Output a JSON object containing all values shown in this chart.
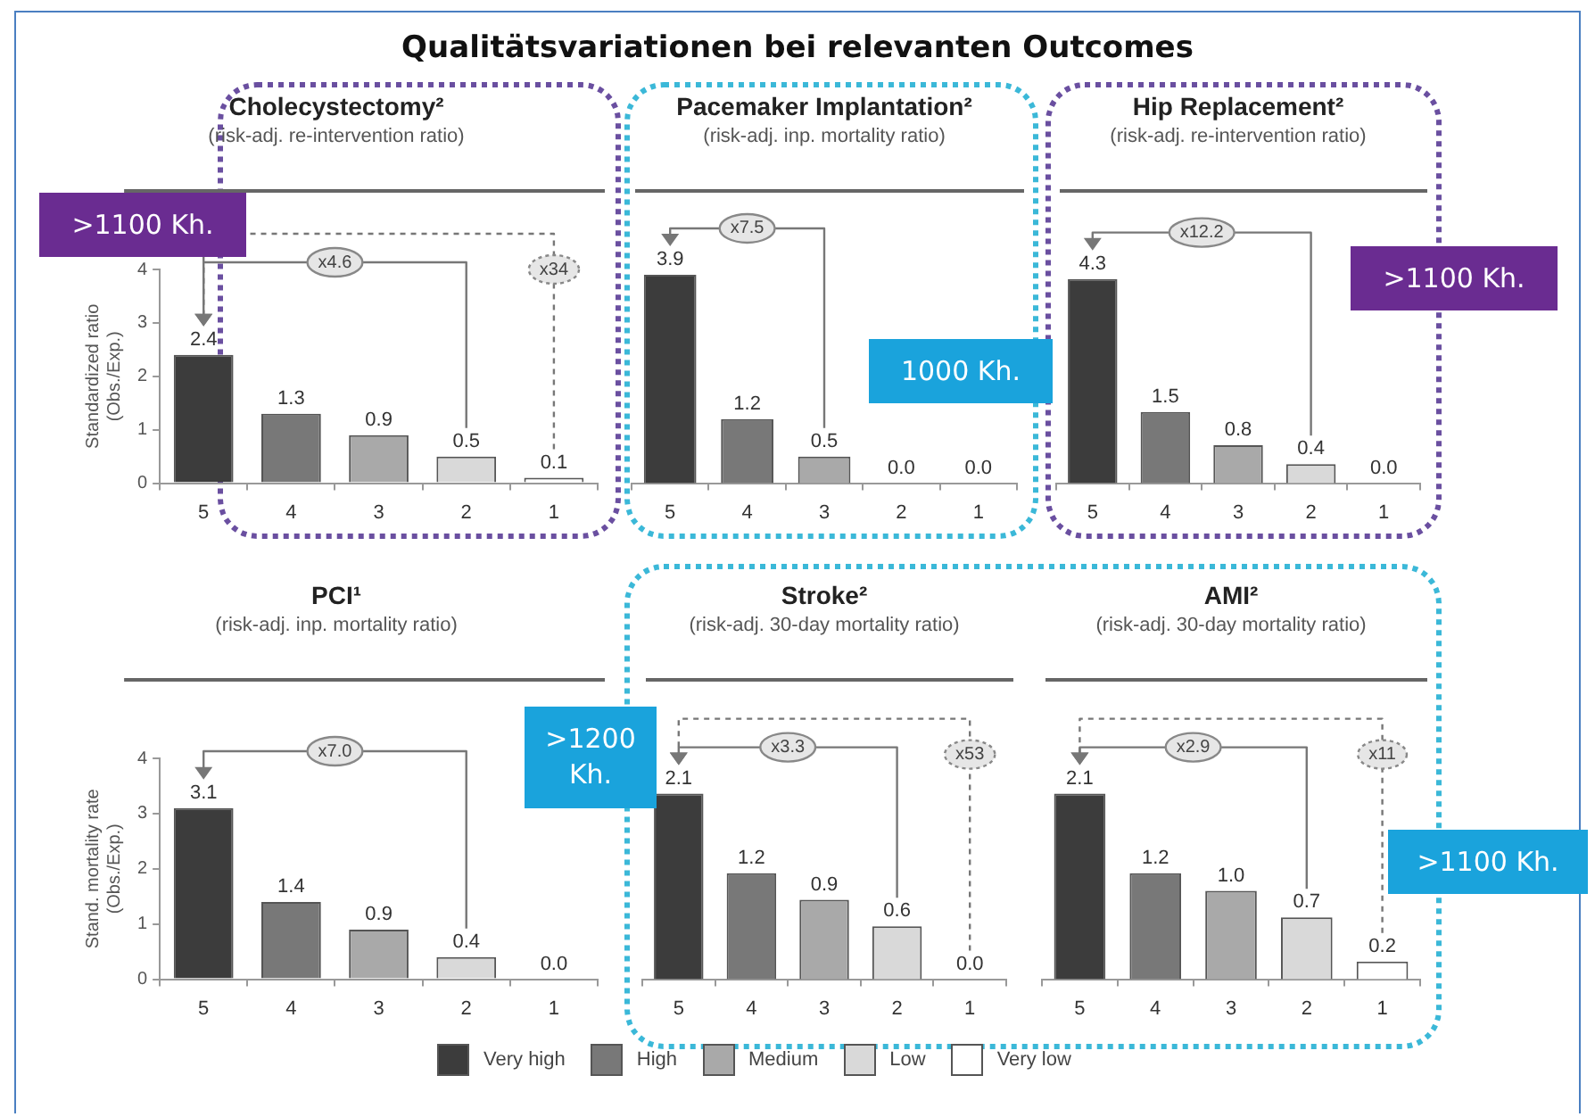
{
  "chart_data": [
    {
      "type": "other",
      "title": "Qualitätsvariationen bei relevanten Outcomes"
    },
    {
      "type": "bar",
      "title": "Cholecystectomy²",
      "subtitle": "(risk-adj. re-intervention ratio)",
      "ylabel": "Standardized ratio\n(Obs./Exp.)",
      "categories": [
        "5",
        "4",
        "3",
        "2",
        "1"
      ],
      "ylim": [
        0,
        4
      ],
      "yticks": [
        0,
        1,
        2,
        3,
        4
      ],
      "annotations": [
        ">1100 Kh.",
        "x4.6",
        "x34"
      ],
      "series": [
        {
          "color": "#3c3c3c",
          "values": [
            2.4,
            null,
            null,
            null,
            null
          ],
          "value_labels": [
            "2.4",
            null,
            null,
            null,
            null
          ]
        },
        {
          "color": "#787878",
          "values": [
            null,
            1.3,
            null,
            null,
            null
          ],
          "value_labels": [
            null,
            "1.3",
            null,
            null,
            null
          ]
        },
        {
          "color": "#a9a9a9",
          "values": [
            null,
            null,
            0.9,
            null,
            null
          ],
          "value_labels": [
            null,
            null,
            "0.9",
            null,
            null
          ]
        },
        {
          "color": "#d9d9d9",
          "values": [
            null,
            null,
            null,
            0.5,
            null
          ],
          "value_labels": [
            null,
            null,
            null,
            "0.5",
            null
          ]
        },
        {
          "color": "#ffffff",
          "values": [
            null,
            null,
            null,
            null,
            0.1
          ],
          "value_labels": [
            null,
            null,
            null,
            null,
            "0.1"
          ]
        }
      ]
    },
    {
      "type": "bar",
      "title": "Pacemaker Implantation²",
      "subtitle": "(risk-adj. inp. mortality ratio)",
      "categories": [
        "5",
        "4",
        "3",
        "2",
        "1"
      ],
      "tick_labels": "x",
      "annotations": [
        "1000 Kh.",
        "x7.5"
      ],
      "series": [
        {
          "color": "#3c3c3c",
          "values": [
            3.9,
            null,
            null,
            null,
            null
          ],
          "value_labels": [
            "3.9",
            null,
            null,
            null,
            null
          ]
        },
        {
          "color": "#787878",
          "values": [
            null,
            1.2,
            null,
            null,
            null
          ],
          "value_labels": [
            null,
            "1.2",
            null,
            null,
            null
          ]
        },
        {
          "color": "#a9a9a9",
          "values": [
            null,
            null,
            0.5,
            null,
            null
          ],
          "value_labels": [
            null,
            null,
            "0.5",
            null,
            null
          ]
        },
        {
          "color": "#d9d9d9",
          "values": [
            null,
            null,
            null,
            0,
            null
          ],
          "value_labels": [
            null,
            null,
            null,
            "0.0",
            null
          ]
        },
        {
          "color": "#ffffff",
          "values": [
            null,
            null,
            null,
            null,
            0
          ],
          "value_labels": [
            null,
            null,
            null,
            null,
            "0.0"
          ]
        }
      ]
    },
    {
      "type": "bar",
      "title": "Hip Replacement²",
      "subtitle": "(risk-adj. re-intervention ratio)",
      "categories": [
        "5",
        "4",
        "3",
        "2",
        "1"
      ],
      "tick_labels": "x",
      "annotations": [
        ">1100 Kh.",
        "x12.2"
      ],
      "series": [
        {
          "color": "#3c3c3c",
          "values": [
            4.3,
            null,
            null,
            null,
            null
          ],
          "value_labels": [
            "4.3",
            null,
            null,
            null,
            null
          ]
        },
        {
          "color": "#787878",
          "values": [
            null,
            1.5,
            null,
            null,
            null
          ],
          "value_labels": [
            null,
            "1.5",
            null,
            null,
            null
          ]
        },
        {
          "color": "#a9a9a9",
          "values": [
            null,
            null,
            0.8,
            null,
            null
          ],
          "value_labels": [
            null,
            null,
            "0.8",
            null,
            null
          ]
        },
        {
          "color": "#d9d9d9",
          "values": [
            null,
            null,
            null,
            0.4,
            null
          ],
          "value_labels": [
            null,
            null,
            null,
            "0.4",
            null
          ]
        },
        {
          "color": "#ffffff",
          "values": [
            null,
            null,
            null,
            null,
            0
          ],
          "value_labels": [
            null,
            null,
            null,
            null,
            "0.0"
          ]
        }
      ]
    },
    {
      "type": "bar",
      "title": "PCI¹",
      "subtitle": "(risk-adj. inp. mortality ratio)",
      "ylabel": "Stand. mortality rate\n(Obs./Exp.)",
      "categories": [
        "5",
        "4",
        "3",
        "2",
        "1"
      ],
      "ylim": [
        0,
        4
      ],
      "yticks": [
        0,
        1,
        2,
        3,
        4
      ],
      "annotations": [
        "x7.0"
      ],
      "series": [
        {
          "color": "#3c3c3c",
          "values": [
            3.1,
            null,
            null,
            null,
            null
          ],
          "value_labels": [
            "3.1",
            null,
            null,
            null,
            null
          ]
        },
        {
          "color": "#787878",
          "values": [
            null,
            1.4,
            null,
            null,
            null
          ],
          "value_labels": [
            null,
            "1.4",
            null,
            null,
            null
          ]
        },
        {
          "color": "#a9a9a9",
          "values": [
            null,
            null,
            0.9,
            null,
            null
          ],
          "value_labels": [
            null,
            null,
            "0.9",
            null,
            null
          ]
        },
        {
          "color": "#d9d9d9",
          "values": [
            null,
            null,
            null,
            0.4,
            null
          ],
          "value_labels": [
            null,
            null,
            null,
            "0.4",
            null
          ]
        },
        {
          "color": "#ffffff",
          "values": [
            null,
            null,
            null,
            null,
            0
          ],
          "value_labels": [
            null,
            null,
            null,
            null,
            "0.0"
          ]
        }
      ]
    },
    {
      "type": "bar",
      "title": "Stroke²",
      "subtitle": "(risk-adj. 30-day mortality ratio)",
      "categories": [
        "5",
        "4",
        "3",
        "2",
        "1"
      ],
      "tick_labels": "x",
      "legend": "bottom",
      "annotations": [
        ">1200 Kh.",
        "x3.3",
        "x53"
      ],
      "series": [
        {
          "name": "Very high",
          "color": "#3c3c3c",
          "values": [
            2.1,
            null,
            null,
            null,
            null
          ],
          "value_labels": [
            "2.1",
            null,
            null,
            null,
            null
          ]
        },
        {
          "name": "High",
          "color": "#787878",
          "values": [
            null,
            1.2,
            null,
            null,
            null
          ],
          "value_labels": [
            null,
            "1.2",
            null,
            null,
            null
          ]
        },
        {
          "name": "Medium",
          "color": "#a9a9a9",
          "values": [
            null,
            null,
            0.9,
            null,
            null
          ],
          "value_labels": [
            null,
            null,
            "0.9",
            null,
            null
          ]
        },
        {
          "name": "Low",
          "color": "#d9d9d9",
          "values": [
            null,
            null,
            null,
            0.6,
            null
          ],
          "value_labels": [
            null,
            null,
            null,
            "0.6",
            null
          ]
        },
        {
          "name": "Very low",
          "color": "#ffffff",
          "values": [
            null,
            null,
            null,
            null,
            0
          ],
          "value_labels": [
            null,
            null,
            null,
            null,
            "0.0"
          ]
        }
      ]
    },
    {
      "type": "bar",
      "title": "AMI²",
      "subtitle": "(risk-adj. 30-day mortality ratio)",
      "categories": [
        "5",
        "4",
        "3",
        "2",
        "1"
      ],
      "tick_labels": "x",
      "annotations": [
        ">1100 Kh.",
        "x2.9",
        "x11"
      ],
      "series": [
        {
          "color": "#3c3c3c",
          "values": [
            2.1,
            null,
            null,
            null,
            null
          ],
          "value_labels": [
            "2.1",
            null,
            null,
            null,
            null
          ]
        },
        {
          "color": "#787878",
          "values": [
            null,
            1.2,
            null,
            null,
            null
          ],
          "value_labels": [
            null,
            "1.2",
            null,
            null,
            null
          ]
        },
        {
          "color": "#a9a9a9",
          "values": [
            null,
            null,
            1.0,
            null,
            null
          ],
          "value_labels": [
            null,
            null,
            "1.0",
            null,
            null
          ]
        },
        {
          "color": "#d9d9d9",
          "values": [
            null,
            null,
            null,
            0.7,
            null
          ],
          "value_labels": [
            null,
            null,
            null,
            "0.7",
            null
          ]
        },
        {
          "color": "#ffffff",
          "values": [
            null,
            null,
            null,
            null,
            0.2
          ],
          "value_labels": [
            null,
            null,
            null,
            null,
            "0.2"
          ]
        }
      ]
    }
  ]
}
